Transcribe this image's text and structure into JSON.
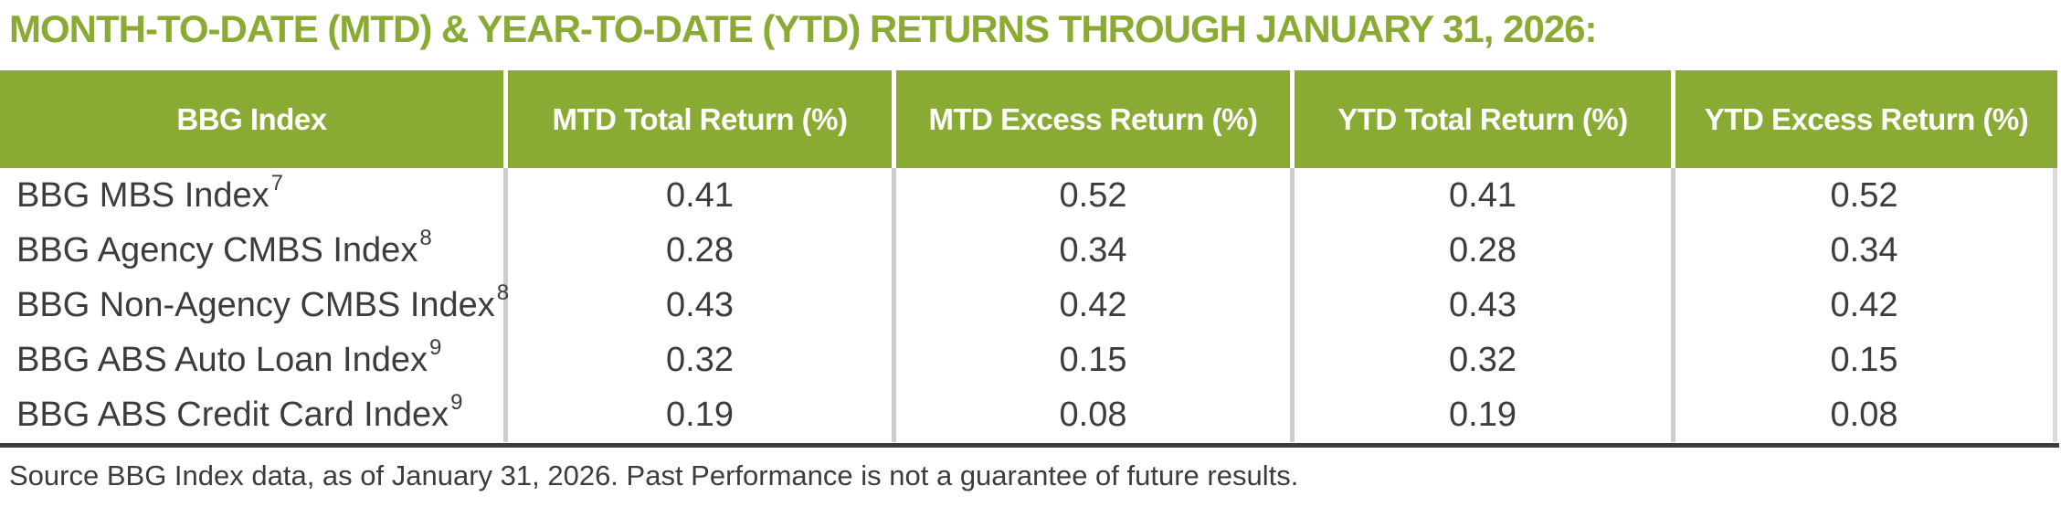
{
  "title": "MONTH-TO-DATE (MTD) & YEAR-TO-DATE (YTD) RETURNS THROUGH JANUARY 31, 2026:",
  "colors": {
    "accent_green": "#8aab33",
    "header_text": "#ffffff",
    "body_text": "#3c3c3c",
    "separator_gray": "#cdcdcb",
    "bottom_rule": "#3b3b3b"
  },
  "table": {
    "headers": [
      "BBG Index",
      "MTD Total Return (%)",
      "MTD Excess Return (%)",
      "YTD Total Return (%)",
      "YTD Excess Return (%)"
    ],
    "rows": [
      {
        "index_name": "BBG MBS Index",
        "footnote": "7",
        "mtd_total": "0.41",
        "mtd_excess": "0.52",
        "ytd_total": "0.41",
        "ytd_excess": "0.52"
      },
      {
        "index_name": "BBG Agency CMBS Index",
        "footnote": "8",
        "mtd_total": "0.28",
        "mtd_excess": "0.34",
        "ytd_total": "0.28",
        "ytd_excess": "0.34"
      },
      {
        "index_name": "BBG Non-Agency CMBS Index",
        "footnote": "8",
        "mtd_total": "0.43",
        "mtd_excess": "0.42",
        "ytd_total": "0.43",
        "ytd_excess": "0.42"
      },
      {
        "index_name": "BBG ABS Auto Loan Index",
        "footnote": "9",
        "mtd_total": "0.32",
        "mtd_excess": "0.15",
        "ytd_total": "0.32",
        "ytd_excess": "0.15"
      },
      {
        "index_name": "BBG ABS Credit Card Index",
        "footnote": "9",
        "mtd_total": "0.19",
        "mtd_excess": "0.08",
        "ytd_total": "0.19",
        "ytd_excess": "0.08"
      }
    ]
  },
  "source_note": "Source BBG Index data, as of January 31, 2026. Past Performance is not a guarantee of future results.",
  "chart_data": {
    "type": "table",
    "title": "MONTH-TO-DATE (MTD) & YEAR-TO-DATE (YTD) RETURNS THROUGH JANUARY 31, 2026",
    "columns": [
      "BBG Index",
      "MTD Total Return (%)",
      "MTD Excess Return (%)",
      "YTD Total Return (%)",
      "YTD Excess Return (%)"
    ],
    "rows": [
      [
        "BBG MBS Index [7]",
        0.41,
        0.52,
        0.41,
        0.52
      ],
      [
        "BBG Agency CMBS Index [8]",
        0.28,
        0.34,
        0.28,
        0.34
      ],
      [
        "BBG Non-Agency CMBS Index [8]",
        0.43,
        0.42,
        0.43,
        0.42
      ],
      [
        "BBG ABS Auto Loan Index [9]",
        0.32,
        0.15,
        0.32,
        0.15
      ],
      [
        "BBG ABS Credit Card Index [9]",
        0.19,
        0.08,
        0.19,
        0.08
      ]
    ],
    "source": "Source BBG Index data, as of January 31, 2026. Past Performance is not a guarantee of future results."
  }
}
